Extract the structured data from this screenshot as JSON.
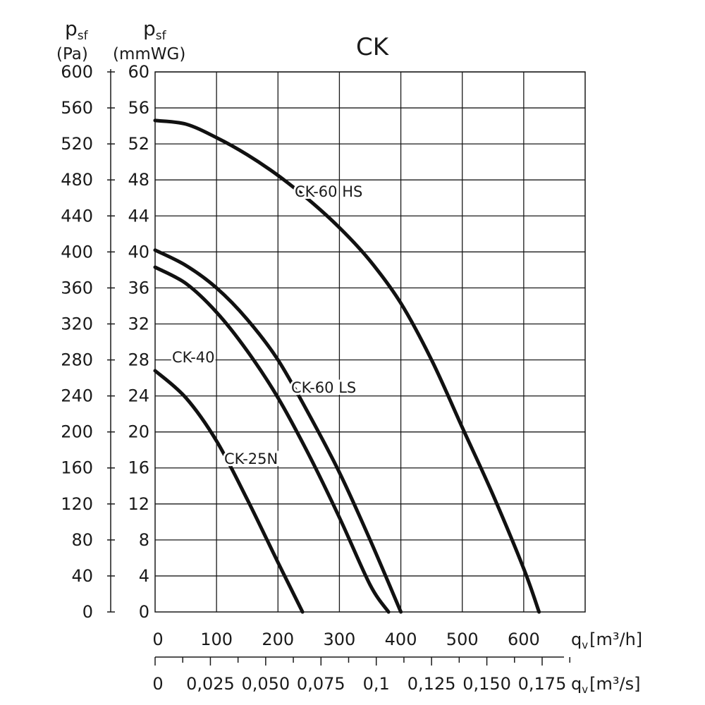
{
  "chart_data": {
    "type": "line",
    "title": "CK",
    "y_left": {
      "symbol": "p",
      "subscript": "sf",
      "unit": "(Pa)",
      "range": [
        0,
        600
      ],
      "ticks": [
        0,
        40,
        80,
        120,
        160,
        200,
        240,
        280,
        320,
        360,
        400,
        440,
        480,
        520,
        560,
        600
      ]
    },
    "y_right": {
      "symbol": "p",
      "subscript": "sf",
      "unit": "(mmWG)",
      "range": [
        0,
        60
      ],
      "ticks": [
        0,
        4,
        8,
        12,
        16,
        20,
        24,
        28,
        32,
        36,
        40,
        44,
        48,
        52,
        56,
        60
      ]
    },
    "x_primary": {
      "symbol": "q",
      "subscript": "v",
      "unit": "[m³/h]",
      "range": [
        0,
        700
      ],
      "ticks": [
        0,
        100,
        200,
        300,
        400,
        500,
        600
      ],
      "tick_labels": [
        "0",
        "100",
        "200",
        "300",
        "400",
        "500",
        "600"
      ]
    },
    "x_secondary": {
      "symbol": "q",
      "subscript": "v",
      "unit": "[m³/s]",
      "range": [
        0,
        0.19444
      ],
      "ticks": [
        0,
        0.025,
        0.05,
        0.075,
        0.1,
        0.125,
        0.15,
        0.175
      ],
      "tick_labels": [
        "0",
        "0,025",
        "0,050",
        "0,075",
        "0,1",
        "0,125",
        "0,150",
        "0,175"
      ]
    },
    "grid": true,
    "series": [
      {
        "name": "CK-60 HS",
        "x": [
          0,
          50,
          100,
          150,
          200,
          250,
          300,
          350,
          400,
          450,
          500,
          550,
          600,
          625
        ],
        "y": [
          546,
          542,
          527,
          508,
          485,
          458,
          427,
          390,
          343,
          280,
          205,
          130,
          48,
          0
        ]
      },
      {
        "name": "CK-60 LS",
        "x": [
          0,
          50,
          100,
          150,
          200,
          250,
          300,
          350,
          400
        ],
        "y": [
          402,
          385,
          360,
          325,
          280,
          220,
          155,
          80,
          0
        ]
      },
      {
        "name": "CK-40",
        "x": [
          0,
          50,
          100,
          150,
          200,
          250,
          300,
          350,
          380
        ],
        "y": [
          383,
          365,
          333,
          290,
          238,
          175,
          105,
          30,
          0
        ]
      },
      {
        "name": "CK-25N",
        "x": [
          0,
          50,
          100,
          150,
          200,
          240
        ],
        "y": [
          268,
          238,
          190,
          125,
          55,
          0
        ]
      }
    ]
  }
}
